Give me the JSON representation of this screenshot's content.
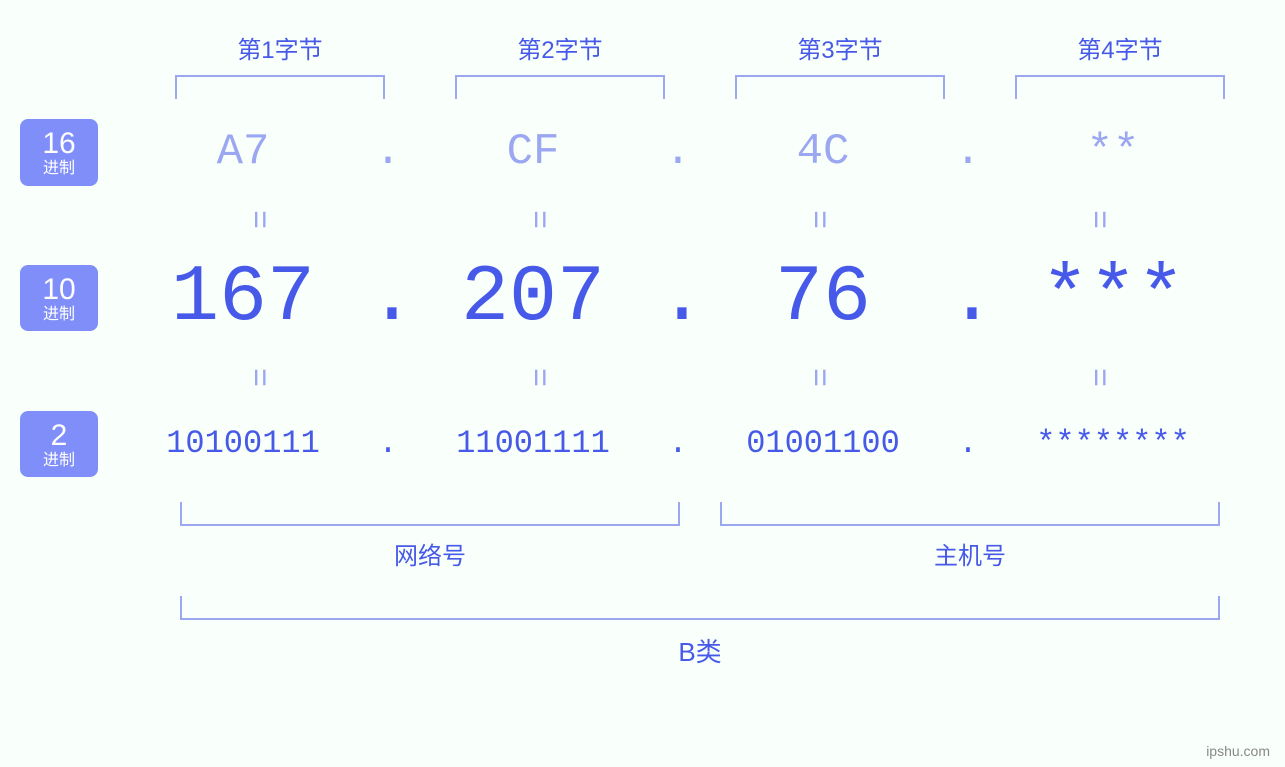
{
  "background_color": "#f9fffa",
  "accent_color": "#4659e8",
  "light_accent_color": "#9ba7f0",
  "badge_bg_color": "#808ef9",
  "byte_headers": [
    "第1字节",
    "第2字节",
    "第3字节",
    "第4字节"
  ],
  "bases": {
    "hex": {
      "number": "16",
      "label": "进制"
    },
    "dec": {
      "number": "10",
      "label": "进制"
    },
    "bin": {
      "number": "2",
      "label": "进制"
    }
  },
  "values": {
    "hex": [
      "A7",
      "CF",
      "4C",
      "**"
    ],
    "dec": [
      "167",
      "207",
      "76",
      "***"
    ],
    "bin": [
      "10100111",
      "11001111",
      "01001100",
      "********"
    ]
  },
  "separator": ".",
  "equals_symbol": "=",
  "bottom_labels": {
    "network": "网络号",
    "host": "主机号"
  },
  "class_label": "B类",
  "watermark": "ipshu.com",
  "font_sizes": {
    "byte_header": 24,
    "hex": 44,
    "dec": 80,
    "bin": 32,
    "equals": 32,
    "bottom_label": 24,
    "class_label": 26,
    "badge_number": 30,
    "badge_text": 16
  }
}
